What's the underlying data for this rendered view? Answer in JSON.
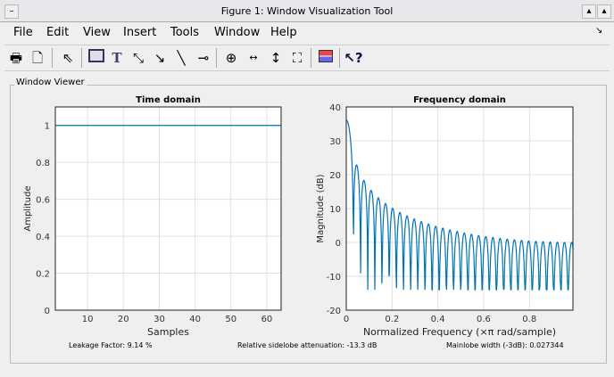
{
  "window": {
    "title": "Figure 1: Window Visualization Tool"
  },
  "menu": [
    "File",
    "Edit",
    "View",
    "Insert",
    "Tools",
    "Window",
    "Help"
  ],
  "toolbar": [
    "print-icon",
    "print-preview-icon",
    "select-arrow-icon",
    "rectangle-icon",
    "text-icon",
    "double-arrow-icon",
    "arrow-icon",
    "line-icon",
    "pin-icon",
    "zoom-in-icon",
    "pan-x-icon",
    "pan-y-icon",
    "fit-icon",
    "legend-icon",
    "help-pointer-icon"
  ],
  "panel": {
    "label": "Window Viewer"
  },
  "stats": {
    "leakage": "Leakage Factor: 9.14 %",
    "sidelobe": "Relative sidelobe attenuation: -13.3 dB",
    "mainlobe": "Mainlobe width (-3dB): 0.027344"
  },
  "line_color": "#0072bd",
  "chart_data": [
    {
      "type": "line",
      "title": "Time domain",
      "xlabel": "Samples",
      "ylabel": "Amplitude",
      "xlim": [
        1,
        64
      ],
      "ylim": [
        0,
        1.1
      ],
      "xticks": [
        "10",
        "20",
        "30",
        "40",
        "50",
        "60"
      ],
      "yticks": [
        "0",
        "0.2",
        "0.4",
        "0.6",
        "0.8",
        "1"
      ],
      "grid": true,
      "x": [
        1,
        64
      ],
      "y": [
        1,
        1
      ]
    },
    {
      "type": "line",
      "title": "Frequency domain",
      "xlabel": "Normalized Frequency  (×π rad/sample)",
      "ylabel": "Magnitude (dB)",
      "xlim": [
        0,
        0.99
      ],
      "ylim": [
        -20,
        40
      ],
      "xticks": [
        "0",
        "0.2",
        "0.4",
        "0.6",
        "0.8"
      ],
      "yticks": [
        "-20",
        "-10",
        "0",
        "10",
        "20",
        "30",
        "40"
      ],
      "grid": true,
      "window": "rectangular",
      "length": 64,
      "peak_db": 36.1,
      "sidelobe_peaks_db": [
        22.8,
        18.3,
        15.4,
        13.3,
        11.6,
        10.2,
        9.0,
        8.0,
        7.1,
        6.3,
        5.6,
        5.0,
        4.4,
        3.9,
        3.4,
        3.0,
        2.6,
        2.2,
        1.9,
        1.6,
        1.3,
        1.1,
        0.9,
        0.7,
        0.5,
        0.4,
        0.3,
        0.2,
        0.1,
        0.1,
        0.0
      ],
      "trough_floor_db": -14
    }
  ]
}
